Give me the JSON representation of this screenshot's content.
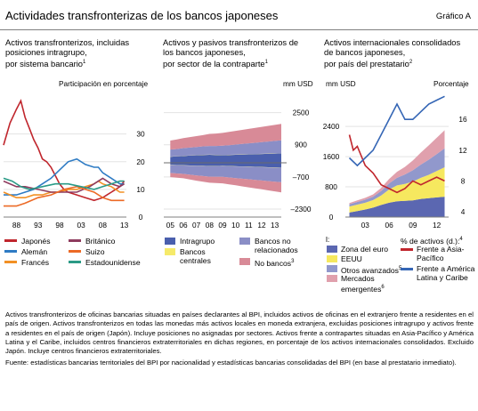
{
  "header": {
    "title": "Actividades transfronterizas de los bancos japoneses",
    "graph_ref": "Gráfico A"
  },
  "colors": {
    "japones": "#c0262d",
    "aleman": "#2e7bc4",
    "frances": "#f29024",
    "britanico": "#8e3b5e",
    "suizo": "#ec6a26",
    "estadounidense": "#2b9a86",
    "intragrupo": "#4a5fad",
    "bancos_centrales": "#f6ea6a",
    "no_relacionados": "#8a8ec6",
    "no_bancos": "#d88a97",
    "zona_euro": "#5b67b1",
    "eeuu": "#f6e85f",
    "otros_avanzados": "#9198cc",
    "mercados_emergentes": "#e0a0ad",
    "asia_pacifico": "#c0262d",
    "america_latina": "#3566b5"
  },
  "panel1": {
    "title_lines": [
      "Activos transfronterizos, incluidas",
      "posiciones intragrupo,",
      "por sistema bancario"
    ],
    "title_note": "1",
    "unit": "Participación en porcentaje",
    "legend": [
      {
        "key": "japones",
        "label": "Japonés"
      },
      {
        "key": "britanico",
        "label": "Británico"
      },
      {
        "key": "aleman",
        "label": "Alemán"
      },
      {
        "key": "suizo",
        "label": "Suizo"
      },
      {
        "key": "frances",
        "label": "Francés"
      },
      {
        "key": "estadounidense",
        "label": "Estadounidense"
      }
    ]
  },
  "panel2": {
    "title_lines": [
      "Activos y pasivos transfronterizos de",
      "los bancos japoneses,",
      "por sector de la contraparte"
    ],
    "title_note": "1",
    "unit": "mm USD",
    "legend": [
      {
        "key": "intragrupo",
        "label": "Intragrupo"
      },
      {
        "key": "no_relacionados",
        "label": "Bancos no relacionados"
      },
      {
        "key": "bancos_centrales",
        "label": "Bancos centrales"
      },
      {
        "key": "no_bancos",
        "label": "No bancos",
        "note": "3"
      }
    ]
  },
  "panel3": {
    "title_lines": [
      "Activos internacionales consolidados",
      "de bancos japoneses,",
      "por país del prestatario"
    ],
    "title_note": "2",
    "unit_left": "mm USD",
    "unit_right": "Porcentaje",
    "legend_group_left": "l:",
    "legend_group_right": "% de activos (d.):",
    "legend_group_right_note": "4",
    "legend": [
      {
        "key": "zona_euro",
        "label": "Zona del euro"
      },
      {
        "key": "eeuu",
        "label": "EEUU"
      },
      {
        "key": "otros_avanzados",
        "label": "Otros avanzados",
        "note": "5"
      },
      {
        "key": "mercados_emergentes",
        "label": "Mercados emergentes",
        "note": "6"
      },
      {
        "key": "asia_pacifico",
        "label": "Frente a Asia-Pacífico"
      },
      {
        "key": "america_latina",
        "label": "Frente a América Latina y Caribe"
      }
    ]
  },
  "chart_data": [
    {
      "type": "line",
      "x_ticks": [
        "88",
        "93",
        "98",
        "03",
        "08",
        "13"
      ],
      "xlim": [
        1985,
        2013.5
      ],
      "ylim": [
        0,
        45
      ],
      "y_ticks": [
        0,
        10,
        20,
        30
      ],
      "ylabel": "Participación en porcentaje",
      "series": [
        {
          "key": "japones",
          "name": "Japonés",
          "points": [
            [
              1985,
              26
            ],
            [
              1986.5,
              34
            ],
            [
              1988,
              39
            ],
            [
              1989,
              42
            ],
            [
              1990,
              36
            ],
            [
              1991,
              32
            ],
            [
              1992,
              28
            ],
            [
              1993,
              25
            ],
            [
              1994,
              21
            ],
            [
              1995,
              20
            ],
            [
              1996,
              18
            ],
            [
              1997,
              15
            ],
            [
              1998,
              12
            ],
            [
              1999,
              10
            ],
            [
              2000,
              9
            ],
            [
              2002,
              8
            ],
            [
              2004,
              7
            ],
            [
              2006,
              6
            ],
            [
              2008,
              7
            ],
            [
              2009,
              8
            ],
            [
              2010,
              9
            ],
            [
              2011,
              10
            ],
            [
              2012,
              11
            ],
            [
              2013,
              13
            ]
          ]
        },
        {
          "key": "aleman",
          "name": "Alemán",
          "points": [
            [
              1985,
              8
            ],
            [
              1988,
              8
            ],
            [
              1990,
              9
            ],
            [
              1992,
              10
            ],
            [
              1994,
              12
            ],
            [
              1996,
              14
            ],
            [
              1998,
              17
            ],
            [
              2000,
              20
            ],
            [
              2002,
              21
            ],
            [
              2004,
              19
            ],
            [
              2006,
              18
            ],
            [
              2007,
              18
            ],
            [
              2008,
              16
            ],
            [
              2010,
              14
            ],
            [
              2012,
              12
            ],
            [
              2013,
              12
            ]
          ]
        },
        {
          "key": "frances",
          "name": "Francés",
          "points": [
            [
              1985,
              9
            ],
            [
              1988,
              7
            ],
            [
              1990,
              7
            ],
            [
              1992,
              8
            ],
            [
              1994,
              8
            ],
            [
              1996,
              9
            ],
            [
              1998,
              9
            ],
            [
              2000,
              10
            ],
            [
              2002,
              10
            ],
            [
              2004,
              11
            ],
            [
              2006,
              12
            ],
            [
              2007,
              13
            ],
            [
              2008,
              12
            ],
            [
              2010,
              11
            ],
            [
              2012,
              9
            ],
            [
              2013,
              9
            ]
          ]
        },
        {
          "key": "britanico",
          "name": "Británico",
          "points": [
            [
              1985,
              13
            ],
            [
              1988,
              11
            ],
            [
              1990,
              11
            ],
            [
              1993,
              10
            ],
            [
              1996,
              9
            ],
            [
              1999,
              9
            ],
            [
              2002,
              9
            ],
            [
              2005,
              11
            ],
            [
              2007,
              13
            ],
            [
              2008,
              14
            ],
            [
              2010,
              12
            ],
            [
              2012,
              11
            ],
            [
              2013,
              12
            ]
          ]
        },
        {
          "key": "suizo",
          "name": "Suizo",
          "points": [
            [
              1985,
              4
            ],
            [
              1988,
              4
            ],
            [
              1990,
              5
            ],
            [
              1993,
              7
            ],
            [
              1996,
              8
            ],
            [
              1999,
              10
            ],
            [
              2002,
              11
            ],
            [
              2004,
              10
            ],
            [
              2006,
              9
            ],
            [
              2008,
              7
            ],
            [
              2010,
              6
            ],
            [
              2012,
              6
            ],
            [
              2013,
              6
            ]
          ]
        },
        {
          "key": "estadounidense",
          "name": "Estadounidense",
          "points": [
            [
              1985,
              14
            ],
            [
              1987,
              13
            ],
            [
              1989,
              11
            ],
            [
              1991,
              10
            ],
            [
              1994,
              11
            ],
            [
              1997,
              12
            ],
            [
              2000,
              12
            ],
            [
              2003,
              11
            ],
            [
              2006,
              10
            ],
            [
              2008,
              11
            ],
            [
              2010,
              12
            ],
            [
              2012,
              13
            ],
            [
              2013,
              13
            ]
          ]
        }
      ]
    },
    {
      "type": "area",
      "x_ticks": [
        "05",
        "06",
        "07",
        "08",
        "09",
        "10",
        "11",
        "12",
        "13"
      ],
      "xlim": [
        2004.5,
        2013.5
      ],
      "ylim": [
        -2700,
        3500
      ],
      "y_ticks": [
        -2300,
        -700,
        900,
        2500
      ],
      "ylabel": "mm USD",
      "x": [
        2005,
        2005.5,
        2006,
        2006.5,
        2007,
        2007.5,
        2008,
        2008.5,
        2009,
        2009.5,
        2010,
        2010.5,
        2011,
        2011.5,
        2012,
        2012.5,
        2013,
        2013.5
      ],
      "series": [
        {
          "key": "intragrupo",
          "name": "Intragrupo",
          "pos": [
            300,
            320,
            340,
            360,
            380,
            390,
            400,
            390,
            380,
            390,
            400,
            410,
            420,
            430,
            440,
            450,
            460,
            470
          ],
          "neg": [
            -100,
            -110,
            -120,
            -130,
            -140,
            -150,
            -160,
            -160,
            -150,
            -160,
            -170,
            -180,
            -190,
            -200,
            -210,
            -220,
            -230,
            -240
          ]
        },
        {
          "key": "bancos_centrales",
          "name": "Bancos centrales",
          "pos": [
            10,
            10,
            10,
            10,
            10,
            10,
            10,
            10,
            10,
            10,
            10,
            10,
            10,
            10,
            10,
            10,
            10,
            10
          ],
          "neg": [
            -10,
            -10,
            -10,
            -10,
            -10,
            -10,
            -10,
            -10,
            -10,
            -10,
            -10,
            -10,
            -10,
            -10,
            -10,
            -10,
            -10,
            -10
          ]
        },
        {
          "key": "no_relacionados",
          "name": "Bancos no relacionados",
          "pos": [
            350,
            360,
            380,
            390,
            400,
            420,
            430,
            440,
            460,
            480,
            500,
            520,
            540,
            560,
            580,
            600,
            620,
            640
          ],
          "neg": [
            -400,
            -410,
            -420,
            -450,
            -480,
            -500,
            -520,
            -530,
            -540,
            -560,
            -580,
            -600,
            -620,
            -640,
            -660,
            -680,
            -700,
            -720
          ]
        },
        {
          "key": "no_bancos",
          "name": "No bancos",
          "pos": [
            450,
            470,
            500,
            520,
            540,
            560,
            600,
            620,
            640,
            660,
            680,
            700,
            720,
            740,
            760,
            780,
            800,
            820
          ],
          "neg": [
            -200,
            -210,
            -220,
            -240,
            -260,
            -280,
            -300,
            -310,
            -320,
            -340,
            -360,
            -380,
            -400,
            -420,
            -440,
            -460,
            -480,
            -500
          ]
        }
      ]
    },
    {
      "type": "area",
      "x_ticks": [
        "03",
        "06",
        "09",
        "12"
      ],
      "xlim": [
        2000.5,
        2013.5
      ],
      "ylim_left": [
        0,
        3300
      ],
      "y_ticks_left": [
        0,
        800,
        1600,
        2400
      ],
      "ylim_right": [
        3.3,
        19.5
      ],
      "y_ticks_right": [
        4,
        8,
        12,
        16
      ],
      "ylabel_left": "mm USD",
      "ylabel_right": "Porcentaje",
      "x": [
        2001,
        2002,
        2003,
        2004,
        2005,
        2006,
        2007,
        2008,
        2009,
        2010,
        2011,
        2012,
        2013
      ],
      "series": [
        {
          "key": "zona_euro",
          "name": "Zona del euro",
          "values": [
            120,
            160,
            200,
            250,
            320,
            380,
            420,
            430,
            440,
            480,
            500,
            520,
            540
          ]
        },
        {
          "key": "eeuu",
          "name": "EEUU",
          "values": [
            160,
            170,
            180,
            200,
            250,
            350,
            420,
            450,
            500,
            560,
            620,
            700,
            780
          ]
        },
        {
          "key": "otros_avanzados",
          "name": "Otros avanzados",
          "values": [
            60,
            70,
            80,
            90,
            120,
            160,
            200,
            250,
            300,
            350,
            400,
            450,
            500
          ]
        },
        {
          "key": "mercados_emergentes",
          "name": "Mercados emergentes",
          "values": [
            30,
            40,
            50,
            60,
            80,
            120,
            160,
            200,
            260,
            320,
            380,
            430,
            480
          ]
        }
      ],
      "lines": [
        {
          "key": "asia_pacifico",
          "name": "Frente a Asia-Pacífico",
          "points": [
            [
              2001,
              14
            ],
            [
              2001.5,
              12
            ],
            [
              2002,
              12.5
            ],
            [
              2003,
              10
            ],
            [
              2004,
              9
            ],
            [
              2005,
              7.5
            ],
            [
              2006,
              7
            ],
            [
              2007,
              6.5
            ],
            [
              2008,
              7
            ],
            [
              2009,
              8
            ],
            [
              2010,
              7.5
            ],
            [
              2011,
              8
            ],
            [
              2012,
              8.5
            ],
            [
              2013,
              8
            ]
          ]
        },
        {
          "key": "america_latina",
          "name": "Frente a América Latina y Caribe",
          "points": [
            [
              2001,
              11
            ],
            [
              2002,
              10
            ],
            [
              2003,
              11
            ],
            [
              2004,
              12
            ],
            [
              2005,
              14
            ],
            [
              2006,
              16
            ],
            [
              2007,
              18
            ],
            [
              2008,
              16
            ],
            [
              2009,
              16
            ],
            [
              2010,
              17
            ],
            [
              2011,
              18
            ],
            [
              2012,
              18.5
            ],
            [
              2013,
              19
            ]
          ]
        }
      ]
    }
  ],
  "notes": "Activos transfronterizos de oficinas bancarias situadas en países declarantes al BPI, incluidos activos de oficinas en el extranjero frente a residentes en el país de origen. Activos transfronterizos en todas las monedas más activos locales en moneda extranjera, excluidas posiciones intragrupo y activos frente a residentes en el país de origen (Japón). Incluye posiciones no asignadas por sectores. Activos frente a contrapartes situadas en Asia-Pacífico y América Latina y el Caribe, incluidos centros financieros extraterritoriales en dichas regiones, en porcentaje de los activos internacionales consolidados. Excluido Japón. Incluye centros financieros extraterritoriales.",
  "source": "Fuente: estadísticas bancarias territoriales del BPI por nacionalidad y estadísticas bancarias consolidadas del BPI (en base al prestatario inmediato)."
}
